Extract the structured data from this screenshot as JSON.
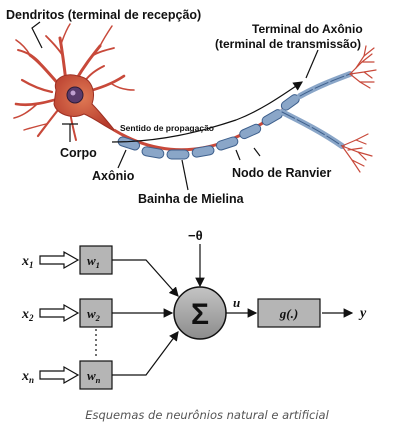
{
  "natural_neuron": {
    "dendrites_label": "Dendritos (terminal de recepção)",
    "axon_terminal_label_line1": "Terminal do Axônio",
    "axon_terminal_label_line2": "(terminal de transmissão)",
    "propagation_label": "Sentido de propagação",
    "body_label": "Corpo",
    "axon_label": "Axônio",
    "ranvier_label": "Nodo de Ranvier",
    "myelin_label": "Bainha de Mielina",
    "colors": {
      "neuron": "#c8493a",
      "myelin": "#8aa6c8",
      "myelin_dark": "#3d5f8c"
    }
  },
  "artificial_neuron": {
    "bias_label": "−θ",
    "inputs": [
      {
        "x": "x",
        "sub": "1",
        "w": "w",
        "wsub": "1"
      },
      {
        "x": "x",
        "sub": "2",
        "w": "w",
        "wsub": "2"
      },
      {
        "x": "x",
        "sub": "n",
        "w": "w",
        "wsub": "n"
      }
    ],
    "sum_symbol": "Σ",
    "u_label": "u",
    "activation_label": "g(.)",
    "output_label": "y",
    "colors": {
      "box_fill": "#b5b5b5",
      "sum_fill": "#9e9e9e"
    }
  },
  "caption": "Esquemas de neurônios natural e artificial"
}
